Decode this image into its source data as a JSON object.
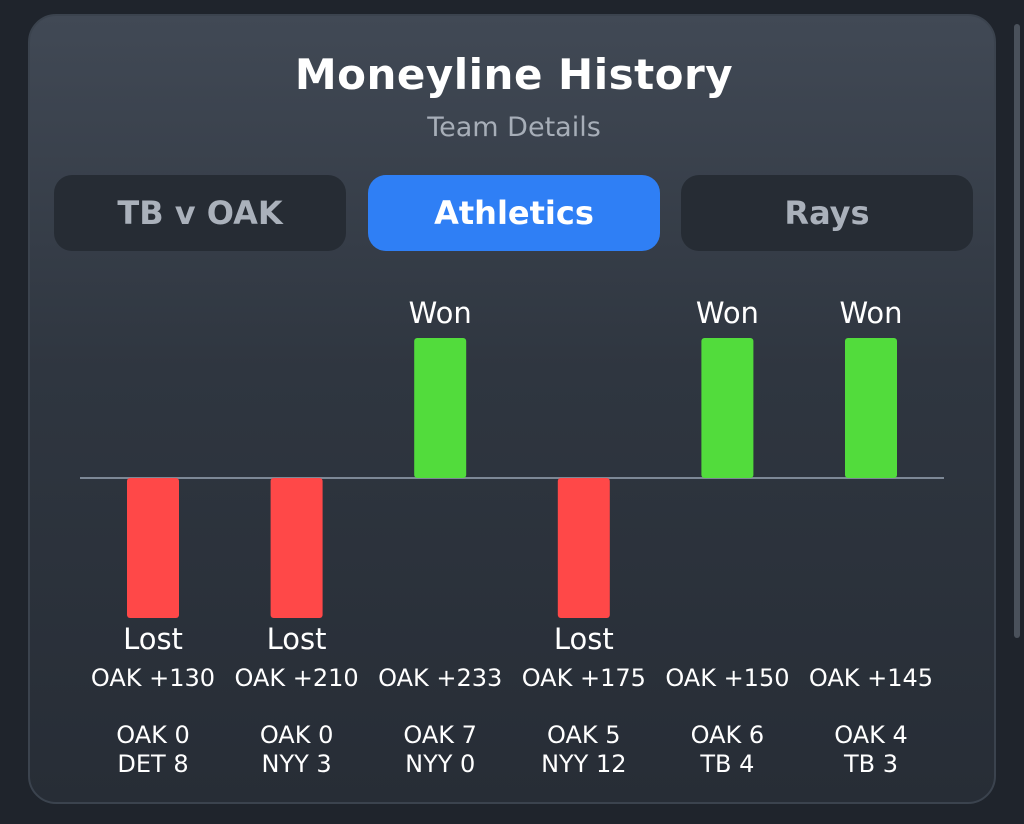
{
  "header": {
    "title": "Moneyline History",
    "subtitle": "Team Details"
  },
  "tabs": [
    {
      "label": "TB v OAK",
      "active": false
    },
    {
      "label": "Athletics",
      "active": true
    },
    {
      "label": "Rays",
      "active": false
    }
  ],
  "colors": {
    "won": "#52dc3c",
    "lost": "#ff4848",
    "active_tab": "#2f7ff5"
  },
  "chart_data": {
    "type": "bar",
    "games": [
      {
        "result": "Lost",
        "line": "OAK +130",
        "score_top": "OAK 0",
        "score_bottom": "DET 8"
      },
      {
        "result": "Lost",
        "line": "OAK +210",
        "score_top": "OAK 0",
        "score_bottom": "NYY 3"
      },
      {
        "result": "Won",
        "line": "OAK +233",
        "score_top": "OAK 7",
        "score_bottom": "NYY 0"
      },
      {
        "result": "Lost",
        "line": "OAK +175",
        "score_top": "OAK 5",
        "score_bottom": "NYY 12"
      },
      {
        "result": "Won",
        "line": "OAK +150",
        "score_top": "OAK 6",
        "score_bottom": "TB 4"
      },
      {
        "result": "Won",
        "line": "OAK +145",
        "score_top": "OAK 4",
        "score_bottom": "TB 3"
      }
    ]
  }
}
